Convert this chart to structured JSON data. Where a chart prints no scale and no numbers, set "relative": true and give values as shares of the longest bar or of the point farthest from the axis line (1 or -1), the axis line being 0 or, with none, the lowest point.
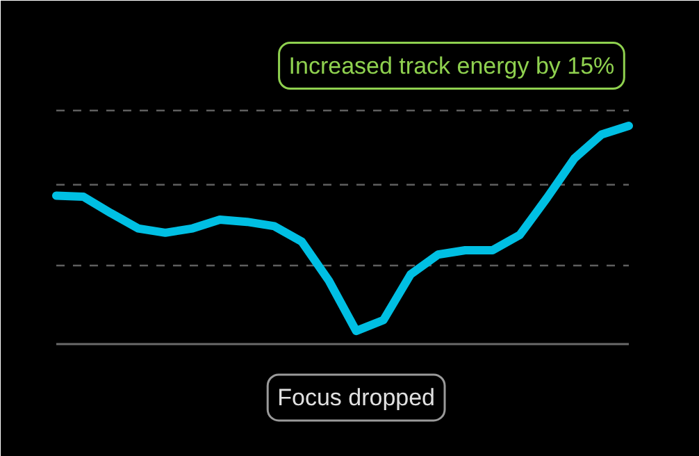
{
  "chart_data": {
    "type": "line",
    "relative": true,
    "categories": [
      null,
      null,
      null,
      null,
      null,
      null,
      null,
      null,
      null,
      null,
      null,
      null,
      null,
      null,
      null,
      null,
      null,
      null,
      null,
      null,
      null,
      null
    ],
    "series": [
      {
        "color": "#00bfe3",
        "values": [
          0.68,
          0.675,
          0.6,
          0.53,
          0.51,
          0.53,
          0.57,
          0.56,
          0.54,
          0.47,
          0.29,
          0.06,
          0.11,
          0.32,
          0.41,
          0.43,
          0.43,
          0.5,
          0.67,
          0.85,
          0.96,
          1.0
        ]
      }
    ],
    "ref_lines": [
      {
        "axis": "y",
        "value": 1.07,
        "color": "#5f5f5f",
        "line_style": "dashed"
      },
      {
        "axis": "y",
        "value": 0.73,
        "color": "#5f5f5f",
        "line_style": "dashed"
      },
      {
        "axis": "y",
        "value": 0.36,
        "color": "#5f5f5f",
        "line_style": "dashed"
      }
    ],
    "annotations": [
      "Increased track energy by 15%",
      "Focus dropped"
    ],
    "marker": "none",
    "line_style": "solid"
  }
}
